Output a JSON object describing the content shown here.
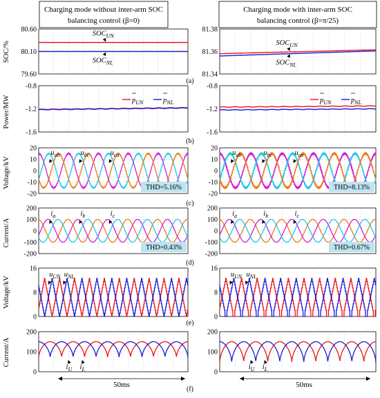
{
  "headers": {
    "left": [
      "Charging mode without inter-arm SOC",
      "balancing control (β=0)"
    ],
    "right": [
      "Charging mode with inter-arm SOC",
      "balancing control (β=π/25)"
    ]
  },
  "time_scale_label": "50ms",
  "colors": {
    "red": "#e8141e",
    "blue": "#1a1ad8",
    "orange": "#e97a1e",
    "cyan": "#1ec8e6",
    "magenta": "#d21ed2",
    "thd_bg": "#bfe3f0"
  },
  "chart_data": [
    {
      "id": "a-left",
      "type": "line",
      "panel": "(a)",
      "ylabel": "SOC/%",
      "ylim": [
        79.6,
        80.6
      ],
      "yticks": [
        "80.60",
        "80.10",
        "79.60"
      ],
      "series": [
        {
          "name": "SOC_UN",
          "color": "#e8141e",
          "start": 80.3,
          "end": 80.3
        },
        {
          "name": "SOC_NL",
          "color": "#1a1ad8",
          "start": 80.1,
          "end": 80.1
        }
      ],
      "annotations": [
        "SOC",
        "UN",
        "SOC",
        "NL"
      ]
    },
    {
      "id": "a-right",
      "type": "line",
      "panel": "(a)",
      "ylabel": "",
      "ylim": [
        81.34,
        81.38
      ],
      "yticks": [
        "81.38",
        "81.36",
        "81.34"
      ],
      "series": [
        {
          "name": "SOC_UN",
          "color": "#e8141e",
          "start": 81.358,
          "end": 81.3615
        },
        {
          "name": "SOC_NL",
          "color": "#1a1ad8",
          "start": 81.356,
          "end": 81.3605
        }
      ],
      "annotations": [
        "SOC",
        "UN",
        "SOC",
        "NL"
      ]
    },
    {
      "id": "b-left",
      "type": "line",
      "panel": "(b)",
      "ylabel": "Power/MW",
      "ylim": [
        -1.6,
        -0.8
      ],
      "yticks": [
        "-0.8",
        "-1.2",
        "-1.6"
      ],
      "series": [
        {
          "name": "p_UN",
          "color": "#e8141e",
          "start": -1.21,
          "end": -1.18
        },
        {
          "name": "p_NL",
          "color": "#1a1ad8",
          "start": -1.215,
          "end": -1.185
        }
      ],
      "legend": [
        "p",
        "UN",
        "p",
        "NL"
      ]
    },
    {
      "id": "b-right",
      "type": "line",
      "panel": "(b)",
      "ylabel": "",
      "ylim": [
        -1.6,
        -0.8
      ],
      "yticks": [
        "-0.8",
        "-1.2",
        "-1.6"
      ],
      "series": [
        {
          "name": "p_UN",
          "color": "#e8141e",
          "start": -1.17,
          "end": -1.15
        },
        {
          "name": "p_NL",
          "color": "#1a1ad8",
          "start": -1.22,
          "end": -1.2
        }
      ],
      "legend": [
        "p",
        "UN",
        "p",
        "NL"
      ]
    },
    {
      "id": "c-left",
      "type": "line",
      "panel": "(c)",
      "ylabel": "Voltage/kV",
      "ylim": [
        -20,
        20
      ],
      "yticks": [
        "20",
        "10",
        "0",
        "-10",
        "-20"
      ],
      "amplitude": 15,
      "cycles": 5,
      "distorted": false,
      "thd": "THD=5.16%",
      "series": [
        {
          "name": "u_ab",
          "color": "#d21ed2"
        },
        {
          "name": "u_bc",
          "color": "#1ec8e6"
        },
        {
          "name": "u_ca",
          "color": "#e97a1e"
        }
      ],
      "labels": [
        "u",
        "ab",
        "u",
        "bc",
        "u",
        "ca"
      ]
    },
    {
      "id": "c-right",
      "type": "line",
      "panel": "(c)",
      "ylabel": "",
      "ylim": [
        -20,
        20
      ],
      "yticks": [
        "20",
        "10",
        "0",
        "-10",
        "-20"
      ],
      "amplitude": 15,
      "cycles": 5,
      "distorted": true,
      "thd": "THD=8.13%",
      "series": [
        {
          "name": "u_ab",
          "color": "#d21ed2"
        },
        {
          "name": "u_bc",
          "color": "#1ec8e6"
        },
        {
          "name": "u_ca",
          "color": "#e97a1e"
        }
      ],
      "labels": [
        "u",
        "ab",
        "u",
        "bc",
        "u",
        "ca"
      ]
    },
    {
      "id": "d-left",
      "type": "line",
      "panel": "(d)",
      "ylabel": "Current/A",
      "ylim": [
        -200,
        200
      ],
      "yticks": [
        "200",
        "100",
        "0",
        "-100",
        "-200"
      ],
      "amplitude": 100,
      "cycles": 5,
      "thd": "THD=0.43%",
      "series": [
        {
          "name": "i_a",
          "color": "#e97a1e"
        },
        {
          "name": "i_b",
          "color": "#d21ed2"
        },
        {
          "name": "i_c",
          "color": "#1ec8e6"
        }
      ],
      "labels": [
        "i",
        "a",
        "i",
        "b",
        "i",
        "c"
      ]
    },
    {
      "id": "d-right",
      "type": "line",
      "panel": "(d)",
      "ylabel": "",
      "ylim": [
        -200,
        200
      ],
      "yticks": [
        "200",
        "100",
        "0",
        "-100",
        "-200"
      ],
      "amplitude": 100,
      "cycles": 5,
      "thd": "THD=0.67%",
      "series": [
        {
          "name": "i_a",
          "color": "#e97a1e"
        },
        {
          "name": "i_b",
          "color": "#d21ed2"
        },
        {
          "name": "i_c",
          "color": "#1ec8e6"
        }
      ],
      "labels": [
        "i",
        "a",
        "i",
        "b",
        "i",
        "c"
      ]
    },
    {
      "id": "e-left",
      "type": "line",
      "panel": "(e)",
      "ylabel": "Voltage/kV",
      "ylim": [
        0,
        16
      ],
      "yticks": [
        "16",
        "8",
        "0"
      ],
      "peak": 12.5,
      "cycles": 10,
      "deep": false,
      "series": [
        {
          "name": "u_UN",
          "color": "#e8141e"
        },
        {
          "name": "u_NL",
          "color": "#1a1ad8"
        }
      ],
      "labels": [
        "u",
        "UN",
        "u",
        "NL"
      ]
    },
    {
      "id": "e-right",
      "type": "line",
      "panel": "(e)",
      "ylabel": "",
      "ylim": [
        0,
        16
      ],
      "yticks": [
        "16",
        "8",
        "0"
      ],
      "peak": 12.5,
      "cycles": 10,
      "deep": true,
      "series": [
        {
          "name": "u_UN",
          "color": "#e8141e"
        },
        {
          "name": "u_NL",
          "color": "#1a1ad8"
        }
      ],
      "labels": [
        "u",
        "UN",
        "u",
        "NL"
      ]
    },
    {
      "id": "f-left",
      "type": "line",
      "panel": "(f)",
      "ylabel": "Current/A",
      "ylim": [
        0,
        200
      ],
      "yticks": [
        "200",
        "100",
        "0"
      ],
      "peak": 150,
      "min": 70,
      "cycles": 6.5,
      "series": [
        {
          "name": "i_U",
          "color": "#e8141e"
        },
        {
          "name": "i_L",
          "color": "#1a1ad8"
        }
      ],
      "labels": [
        "i",
        "U",
        "i",
        "L"
      ]
    },
    {
      "id": "f-right",
      "type": "line",
      "panel": "(f)",
      "ylabel": "",
      "ylim": [
        0,
        200
      ],
      "yticks": [
        "200",
        "100",
        "0"
      ],
      "peak": 150,
      "min": 45,
      "cycles": 6.5,
      "series": [
        {
          "name": "i_U",
          "color": "#e8141e"
        },
        {
          "name": "i_L",
          "color": "#1a1ad8"
        }
      ],
      "labels": [
        "i",
        "U",
        "i",
        "L"
      ]
    }
  ]
}
